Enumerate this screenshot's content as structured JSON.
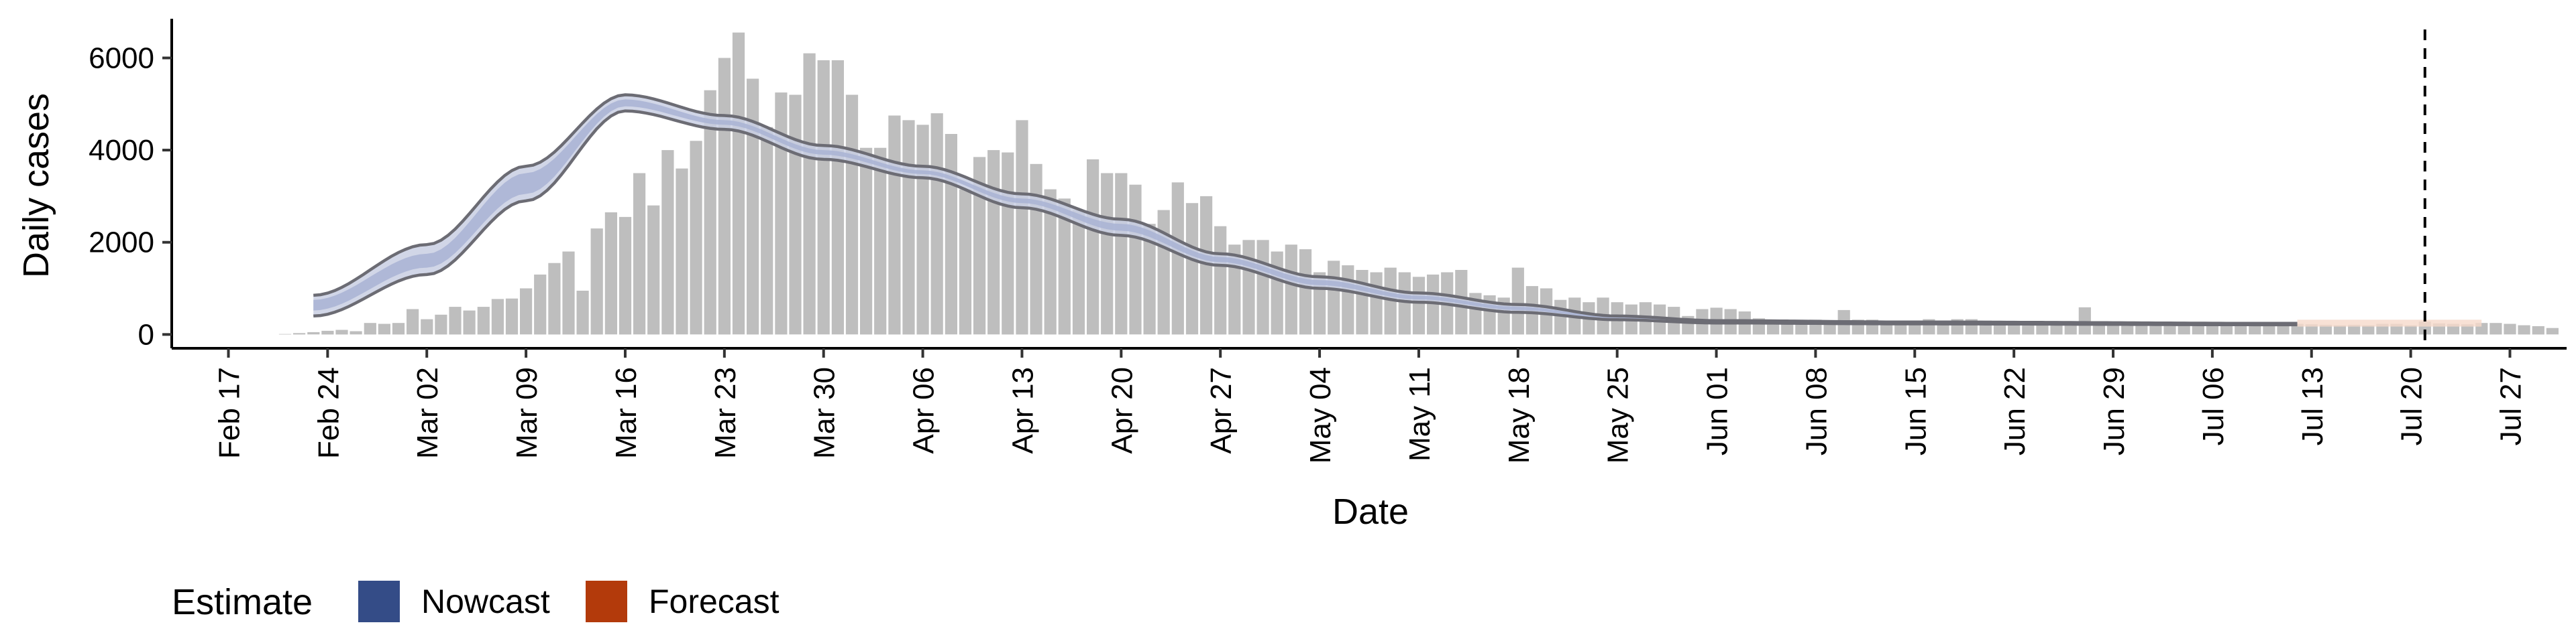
{
  "chart_data": {
    "type": "bar",
    "xlabel": "Date",
    "ylabel": "Daily cases",
    "ylim": [
      -300,
      6850
    ],
    "yticks": [
      0,
      2000,
      4000,
      6000
    ],
    "xlim": [
      "2020-02-13",
      "2020-07-31"
    ],
    "x_ticks": [
      {
        "date": "2020-02-17",
        "label": "Feb 17"
      },
      {
        "date": "2020-02-24",
        "label": "Feb 24"
      },
      {
        "date": "2020-03-02",
        "label": "Mar 02"
      },
      {
        "date": "2020-03-09",
        "label": "Mar 09"
      },
      {
        "date": "2020-03-16",
        "label": "Mar 16"
      },
      {
        "date": "2020-03-23",
        "label": "Mar 23"
      },
      {
        "date": "2020-03-30",
        "label": "Mar 30"
      },
      {
        "date": "2020-04-06",
        "label": "Apr 06"
      },
      {
        "date": "2020-04-13",
        "label": "Apr 13"
      },
      {
        "date": "2020-04-20",
        "label": "Apr 20"
      },
      {
        "date": "2020-04-27",
        "label": "Apr 27"
      },
      {
        "date": "2020-05-04",
        "label": "May 04"
      },
      {
        "date": "2020-05-11",
        "label": "May 11"
      },
      {
        "date": "2020-05-18",
        "label": "May 18"
      },
      {
        "date": "2020-05-25",
        "label": "May 25"
      },
      {
        "date": "2020-06-01",
        "label": "Jun 01"
      },
      {
        "date": "2020-06-08",
        "label": "Jun 08"
      },
      {
        "date": "2020-06-15",
        "label": "Jun 15"
      },
      {
        "date": "2020-06-22",
        "label": "Jun 22"
      },
      {
        "date": "2020-06-29",
        "label": "Jun 29"
      },
      {
        "date": "2020-07-06",
        "label": "Jul 06"
      },
      {
        "date": "2020-07-13",
        "label": "Jul 13"
      },
      {
        "date": "2020-07-20",
        "label": "Jul 20"
      },
      {
        "date": "2020-07-27",
        "label": "Jul 27"
      }
    ],
    "bars": {
      "start_date": "2020-02-21",
      "values": [
        10,
        30,
        50,
        80,
        100,
        70,
        250,
        230,
        250,
        550,
        330,
        430,
        600,
        520,
        600,
        770,
        780,
        1000,
        1300,
        1550,
        1800,
        950,
        2300,
        2650,
        2550,
        3500,
        2800,
        4000,
        3600,
        4200,
        5300,
        6000,
        6550,
        5550,
        4500,
        5250,
        5200,
        6100,
        5950,
        5950,
        5200,
        4050,
        4050,
        4750,
        4650,
        4550,
        4800,
        4350,
        3150,
        3850,
        4000,
        3950,
        4650,
        3700,
        3150,
        2950,
        2700,
        3800,
        3500,
        3500,
        3250,
        2400,
        2700,
        3300,
        2850,
        3000,
        2350,
        1950,
        2050,
        2050,
        1800,
        1950,
        1850,
        1350,
        1600,
        1500,
        1400,
        1350,
        1450,
        1350,
        1250,
        1300,
        1350,
        1400,
        900,
        850,
        800,
        1450,
        1050,
        1000,
        750,
        800,
        700,
        800,
        700,
        650,
        700,
        650,
        600,
        400,
        550,
        580,
        550,
        500,
        350,
        300,
        280,
        250,
        320,
        300,
        530,
        320,
        320,
        300,
        280,
        250,
        330,
        250,
        330,
        330,
        300,
        250,
        280,
        260,
        270,
        260,
        200,
        590,
        250,
        250,
        230,
        230,
        230,
        230,
        230,
        220,
        210,
        220,
        230,
        230,
        230,
        220,
        230,
        220,
        210,
        200,
        210,
        200,
        230,
        230,
        200,
        280,
        240,
        230,
        220,
        250,
        250,
        230,
        200,
        180,
        140
      ]
    },
    "nowcast": {
      "start_date": "2020-02-23",
      "end_date": "2020-07-12",
      "key_dates": [
        "2020-02-23",
        "2020-03-02",
        "2020-03-09",
        "2020-03-16",
        "2020-03-23",
        "2020-03-30",
        "2020-04-06",
        "2020-04-13",
        "2020-04-20",
        "2020-04-27",
        "2020-05-04",
        "2020-05-11",
        "2020-05-18",
        "2020-05-25",
        "2020-06-01",
        "2020-06-15",
        "2020-07-12"
      ],
      "upper": [
        850,
        1950,
        3650,
        5200,
        4750,
        4100,
        3650,
        3050,
        2500,
        1750,
        1250,
        900,
        650,
        400,
        300,
        270,
        240
      ],
      "lower": [
        400,
        1300,
        2900,
        4850,
        4450,
        3800,
        3400,
        2750,
        2150,
        1500,
        1000,
        700,
        480,
        320,
        250,
        230,
        210
      ],
      "inner_upper": [
        750,
        1750,
        3500,
        5100,
        4650,
        4000,
        3560,
        2950,
        2400,
        1680,
        1180,
        840,
        600,
        380,
        290,
        260,
        235
      ],
      "inner_lower": [
        520,
        1450,
        3050,
        4950,
        4550,
        3900,
        3480,
        2850,
        2250,
        1570,
        1070,
        760,
        530,
        340,
        265,
        240,
        215
      ]
    },
    "forecast": {
      "start_date": "2020-07-12",
      "end_date": "2020-07-25",
      "upper": 320,
      "lower": 170
    },
    "vline_date": "2020-07-21",
    "legend": {
      "title": "Estimate",
      "position": "bottom-left",
      "items": [
        {
          "label": "Nowcast",
          "color": "#344C87"
        },
        {
          "label": "Forecast",
          "color": "#B33A0B"
        }
      ]
    },
    "colors": {
      "bar": "#BEBEBE",
      "nowcast_band": "#C9CFE3",
      "nowcast_inner": "#A9B3D3",
      "nowcast_line": "#6C6C74",
      "forecast_band": "#F6D9CB"
    }
  }
}
